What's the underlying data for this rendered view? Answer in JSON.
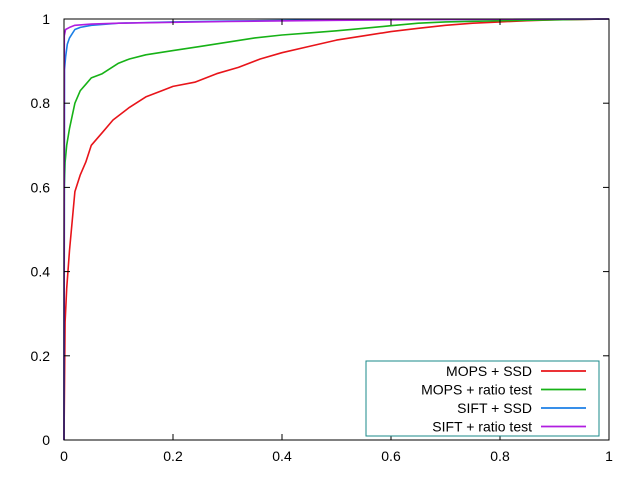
{
  "chart_data": {
    "type": "line",
    "title": "",
    "xlabel": "",
    "ylabel": "",
    "xlim": [
      0,
      1
    ],
    "ylim": [
      0,
      1
    ],
    "x_ticks": [
      "0",
      "0.2",
      "0.4",
      "0.6",
      "0.8",
      "1"
    ],
    "y_ticks": [
      "0",
      "0.2",
      "0.4",
      "0.6",
      "0.8",
      "1"
    ],
    "grid": false,
    "legend_position": "bottom-right",
    "series": [
      {
        "name": "MOPS + SSD",
        "color": "#e8141a",
        "x": [
          0,
          0.002,
          0.005,
          0.01,
          0.015,
          0.02,
          0.03,
          0.04,
          0.05,
          0.07,
          0.09,
          0.12,
          0.15,
          0.18,
          0.2,
          0.24,
          0.28,
          0.32,
          0.36,
          0.4,
          0.45,
          0.5,
          0.55,
          0.6,
          0.65,
          0.7,
          0.75,
          0.8,
          0.85,
          0.9,
          0.95,
          1.0
        ],
        "y": [
          0,
          0.28,
          0.36,
          0.45,
          0.52,
          0.59,
          0.63,
          0.66,
          0.7,
          0.73,
          0.76,
          0.79,
          0.815,
          0.83,
          0.84,
          0.85,
          0.87,
          0.885,
          0.905,
          0.92,
          0.935,
          0.95,
          0.96,
          0.97,
          0.978,
          0.985,
          0.99,
          0.993,
          0.996,
          0.998,
          0.999,
          1.0
        ]
      },
      {
        "name": "MOPS + ratio test",
        "color": "#17b217",
        "x": [
          0,
          0.0005,
          0.002,
          0.005,
          0.01,
          0.015,
          0.02,
          0.03,
          0.04,
          0.05,
          0.07,
          0.1,
          0.12,
          0.15,
          0.2,
          0.25,
          0.3,
          0.35,
          0.4,
          0.45,
          0.5,
          0.55,
          0.6,
          0.65,
          0.7,
          0.8,
          0.9,
          1.0
        ],
        "y": [
          0,
          0.6,
          0.66,
          0.7,
          0.74,
          0.77,
          0.8,
          0.83,
          0.845,
          0.86,
          0.87,
          0.895,
          0.905,
          0.915,
          0.925,
          0.935,
          0.945,
          0.955,
          0.962,
          0.967,
          0.972,
          0.978,
          0.984,
          0.99,
          0.993,
          0.996,
          0.998,
          1.0
        ]
      },
      {
        "name": "SIFT + SSD",
        "color": "#1b7fe6",
        "x": [
          0,
          0.001,
          0.003,
          0.006,
          0.01,
          0.015,
          0.02,
          0.03,
          0.05,
          0.1,
          0.2,
          0.3,
          0.5,
          0.7,
          1.0
        ],
        "y": [
          0,
          0.88,
          0.91,
          0.94,
          0.955,
          0.965,
          0.975,
          0.98,
          0.985,
          0.99,
          0.993,
          0.995,
          0.998,
          0.999,
          1.0
        ]
      },
      {
        "name": "SIFT + ratio test",
        "color": "#b01ee0",
        "x": [
          0,
          0.0005,
          0.003,
          0.01,
          0.02,
          0.05,
          0.1,
          0.3,
          0.5,
          0.7,
          1.0
        ],
        "y": [
          0,
          0.96,
          0.975,
          0.98,
          0.985,
          0.988,
          0.99,
          0.994,
          0.997,
          0.999,
          1.0
        ]
      }
    ]
  }
}
